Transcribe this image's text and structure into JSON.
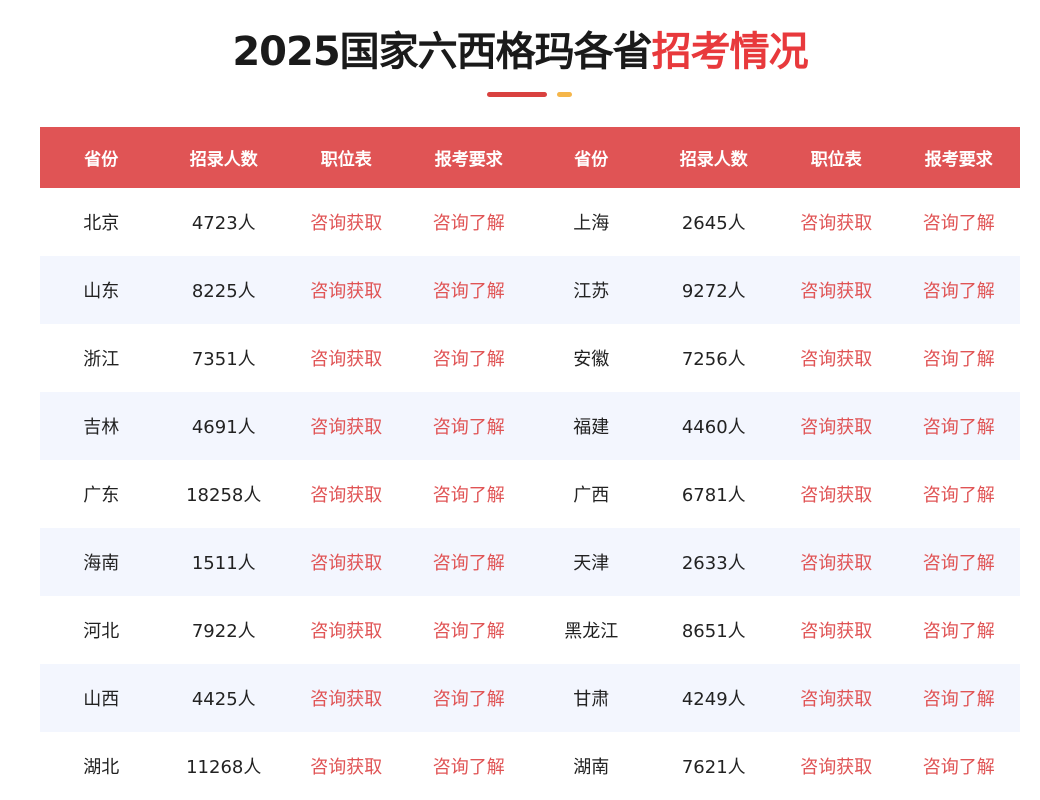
{
  "title": {
    "main": "2025国家六西格玛各省",
    "highlight": "招考情况"
  },
  "colors": {
    "accent": "#e05455",
    "title_highlight": "#e8393c",
    "stripe": "#f3f6fe",
    "deco_yellow": "#f5b64a"
  },
  "table": {
    "headers": [
      "省份",
      "招录人数",
      "职位表",
      "报考要求",
      "省份",
      "招录人数",
      "职位表",
      "报考要求"
    ],
    "link_job": "咨询获取",
    "link_req": "咨询了解",
    "rows": [
      {
        "left": {
          "province": "北京",
          "count": "4723人"
        },
        "right": {
          "province": "上海",
          "count": "2645人"
        }
      },
      {
        "left": {
          "province": "山东",
          "count": "8225人"
        },
        "right": {
          "province": "江苏",
          "count": "9272人"
        }
      },
      {
        "left": {
          "province": "浙江",
          "count": "7351人"
        },
        "right": {
          "province": "安徽",
          "count": "7256人"
        }
      },
      {
        "left": {
          "province": "吉林",
          "count": "4691人"
        },
        "right": {
          "province": "福建",
          "count": "4460人"
        }
      },
      {
        "left": {
          "province": "广东",
          "count": "18258人"
        },
        "right": {
          "province": "广西",
          "count": "6781人"
        }
      },
      {
        "left": {
          "province": "海南",
          "count": "1511人"
        },
        "right": {
          "province": "天津",
          "count": "2633人"
        }
      },
      {
        "left": {
          "province": "河北",
          "count": "7922人"
        },
        "right": {
          "province": "黑龙江",
          "count": "8651人"
        }
      },
      {
        "left": {
          "province": "山西",
          "count": "4425人"
        },
        "right": {
          "province": "甘肃",
          "count": "4249人"
        }
      },
      {
        "left": {
          "province": "湖北",
          "count": "11268人"
        },
        "right": {
          "province": "湖南",
          "count": "7621人"
        }
      }
    ]
  }
}
